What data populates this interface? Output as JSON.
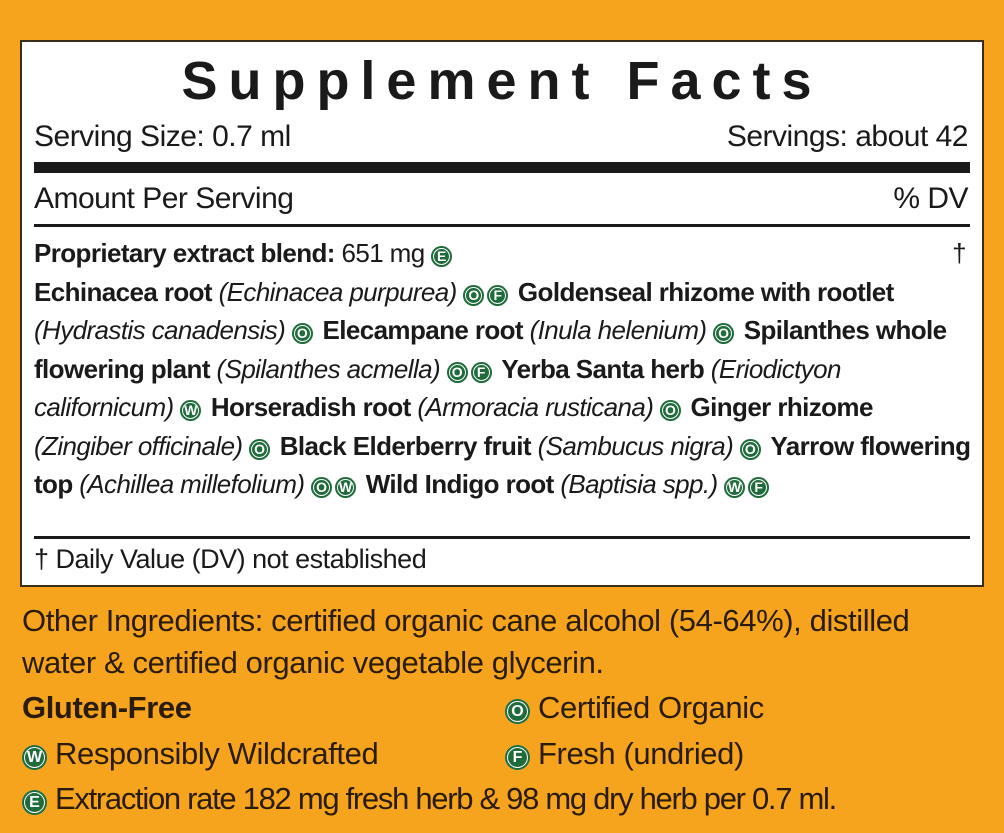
{
  "title": "Supplement Facts",
  "serving_size": "Serving Size: 0.7 ml",
  "servings": "Servings: about 42",
  "amount_header": "Amount Per Serving",
  "dv_header": "% DV",
  "blend": {
    "name": "Proprietary extract blend:",
    "amount": "651 mg",
    "icons": [
      "E"
    ],
    "dv": "†"
  },
  "ingredients": [
    {
      "name": "Echinacea root",
      "latin": "(Echinacea purpurea)",
      "icons": [
        "O",
        "F"
      ]
    },
    {
      "name": "Goldenseal rhizome with rootlet",
      "latin": "(Hydrastis canadensis)",
      "icons": [
        "O"
      ]
    },
    {
      "name": "Elecampane root",
      "latin": "(Inula helenium)",
      "icons": [
        "O"
      ]
    },
    {
      "name": "Spilanthes whole flowering plant",
      "latin": "(Spilanthes acmella)",
      "icons": [
        "O",
        "F"
      ]
    },
    {
      "name": "Yerba Santa herb",
      "latin": "(Eriodictyon californicum)",
      "icons": [
        "W"
      ]
    },
    {
      "name": "Horseradish root",
      "latin": "(Armoracia rusticana)",
      "icons": [
        "O"
      ]
    },
    {
      "name": "Ginger rhizome",
      "latin": "(Zingiber officinale)",
      "icons": [
        "O"
      ]
    },
    {
      "name": "Black Elderberry fruit",
      "latin": "(Sambucus nigra)",
      "icons": [
        "O"
      ]
    },
    {
      "name": "Yarrow flowering top",
      "latin": "(Achillea millefolium)",
      "icons": [
        "O",
        "W"
      ]
    },
    {
      "name": "Wild Indigo root",
      "latin": "(Baptisia spp.)",
      "icons": [
        "W",
        "F"
      ]
    }
  ],
  "footnote": "† Daily Value (DV) not established",
  "other_ingredients": "Other Ingredients: certified organic cane alcohol (54-64%), distilled water & certified organic vegetable glycerin.",
  "gluten_free": "Gluten-Free",
  "legend": [
    {
      "icon": "O",
      "label": "Certified Organic"
    },
    {
      "icon": "W",
      "label": "Responsibly Wildcrafted"
    },
    {
      "icon": "F",
      "label": "Fresh (undried)"
    },
    {
      "icon": "E",
      "label": "Extraction rate 182 mg fresh herb & 98 mg dry herb per 0.7 ml."
    }
  ]
}
